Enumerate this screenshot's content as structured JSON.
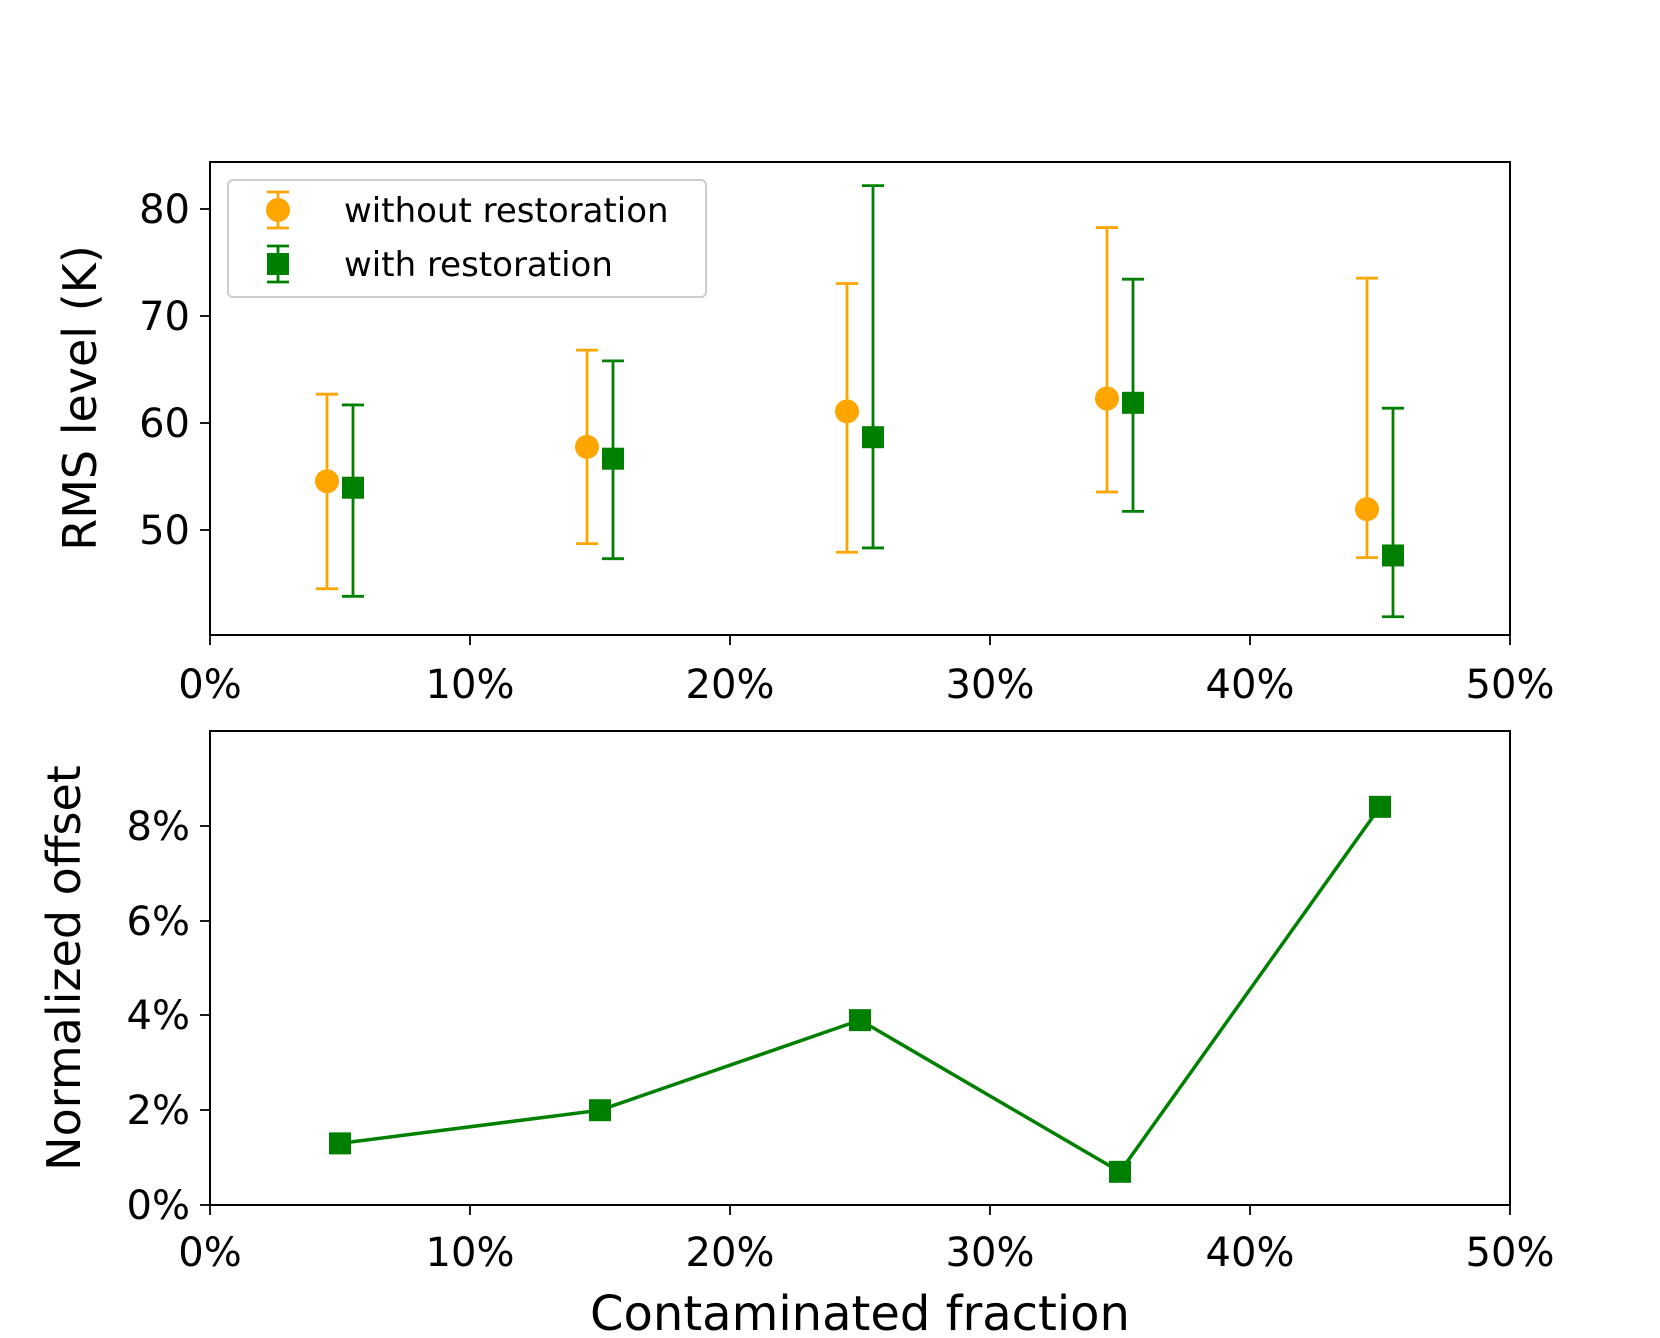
{
  "colors": {
    "without": "#ffa500",
    "with": "#008000",
    "axes": "#000000",
    "legend_border": "#cccccc"
  },
  "chart_data": [
    {
      "type": "errorbar",
      "ylabel": "RMS level (K)",
      "xlabel": "",
      "xlim": [
        0,
        0.5
      ],
      "ylim": [
        40.5,
        84.5
      ],
      "xticks": [
        0,
        0.1,
        0.2,
        0.3,
        0.4,
        0.5
      ],
      "xtick_labels": [
        "0%",
        "10%",
        "20%",
        "30%",
        "40%",
        "50%"
      ],
      "yticks": [
        50,
        60,
        70,
        80
      ],
      "ytick_labels": [
        "50",
        "60",
        "70",
        "80"
      ],
      "legend_position": "upper-left",
      "series": [
        {
          "name": "without restoration",
          "marker": "circle",
          "color_key": "without",
          "x": [
            0.045,
            0.145,
            0.245,
            0.345,
            0.445
          ],
          "y": [
            54.8,
            58.0,
            61.3,
            62.5,
            52.2
          ],
          "ylow": [
            44.8,
            49.0,
            48.2,
            53.8,
            47.7
          ],
          "yhigh": [
            62.9,
            67.0,
            73.2,
            78.4,
            73.7
          ]
        },
        {
          "name": "with restoration",
          "marker": "square",
          "color_key": "with",
          "x": [
            0.055,
            0.155,
            0.255,
            0.355,
            0.455
          ],
          "y": [
            54.2,
            56.9,
            58.9,
            62.1,
            47.9
          ],
          "ylow": [
            44.1,
            47.6,
            48.6,
            52.0,
            42.2
          ],
          "yhigh": [
            61.9,
            66.0,
            82.3,
            73.6,
            61.6
          ]
        }
      ]
    },
    {
      "type": "line",
      "ylabel": "Normalized offset",
      "xlabel": "Contaminated fraction",
      "xlim": [
        0,
        0.5
      ],
      "ylim": [
        0,
        0.1
      ],
      "xticks": [
        0,
        0.1,
        0.2,
        0.3,
        0.4,
        0.5
      ],
      "xtick_labels": [
        "0%",
        "10%",
        "20%",
        "30%",
        "40%",
        "50%"
      ],
      "yticks": [
        0,
        0.02,
        0.04,
        0.06,
        0.08
      ],
      "ytick_labels": [
        "0%",
        "2%",
        "4%",
        "6%",
        "8%"
      ],
      "series": [
        {
          "name": "normalized offset",
          "marker": "square",
          "color_key": "with",
          "x": [
            0.05,
            0.15,
            0.25,
            0.35,
            0.45
          ],
          "y": [
            0.013,
            0.02,
            0.039,
            0.007,
            0.084
          ]
        }
      ]
    }
  ]
}
